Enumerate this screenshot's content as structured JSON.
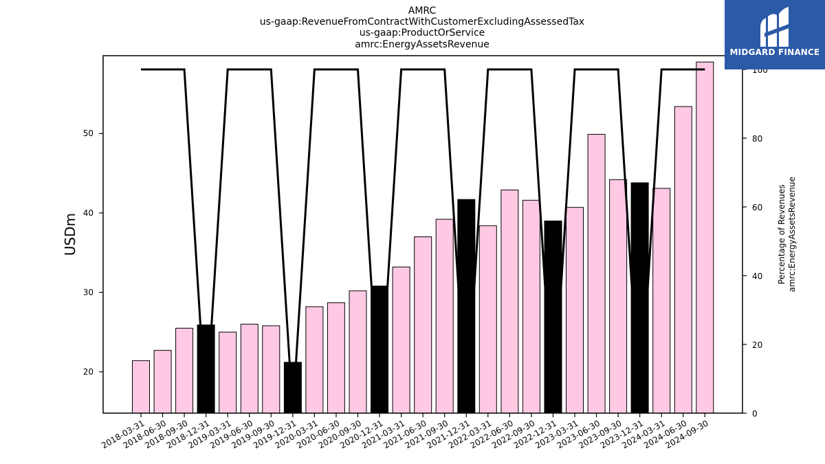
{
  "title": [
    "AMRC",
    "us-gaap:RevenueFromContractWithCustomerExcludingAssessedTax",
    "us-gaap:ProductOrService",
    "amrc:EnergyAssetsRevenue"
  ],
  "logo": {
    "text": "MIDGARD FINANCE",
    "color": "#2b5aa8"
  },
  "chart_data": {
    "type": "bar",
    "categories": [
      "2018-03-31",
      "2018-06-30",
      "2018-09-30",
      "2018-12-31",
      "2019-03-31",
      "2019-06-30",
      "2019-09-30",
      "2019-12-31",
      "2020-03-31",
      "2020-06-30",
      "2020-09-30",
      "2020-12-31",
      "2021-03-31",
      "2021-06-30",
      "2021-09-30",
      "2021-12-31",
      "2022-03-31",
      "2022-06-30",
      "2022-09-30",
      "2022-12-31",
      "2023-03-31",
      "2023-06-30",
      "2023-09-30",
      "2023-12-31",
      "2024-03-31",
      "2024-06-30",
      "2024-09-30"
    ],
    "values": [
      21.4,
      22.7,
      25.5,
      25.9,
      25.0,
      26.0,
      25.8,
      21.2,
      28.2,
      28.7,
      30.2,
      30.8,
      33.2,
      37.0,
      39.2,
      41.7,
      38.4,
      42.9,
      41.6,
      39.0,
      40.7,
      49.9,
      44.2,
      43.8,
      43.1,
      53.4,
      59.0
    ],
    "annual_flags": [
      false,
      false,
      false,
      true,
      false,
      false,
      false,
      true,
      false,
      false,
      false,
      true,
      false,
      false,
      false,
      true,
      false,
      false,
      false,
      true,
      false,
      false,
      false,
      true,
      false,
      false,
      false
    ],
    "bar_color_quarterly": "#ffc9e4",
    "bar_color_annual": "#000000",
    "secondary_line": {
      "values": [
        100,
        100,
        100,
        0,
        100,
        100,
        100,
        0,
        100,
        100,
        100,
        0,
        100,
        100,
        100,
        0,
        100,
        100,
        100,
        0,
        100,
        100,
        100,
        0,
        100,
        100,
        100
      ],
      "color": "#000000"
    },
    "ylabel_left": "USDm",
    "ylabel_right": [
      "Percentage of Revenues",
      "amrc:EnergyAssetsRevenue"
    ],
    "ylim_left": [
      14.8,
      59.8
    ],
    "yticks_left": [
      "20",
      "30",
      "40",
      "50"
    ],
    "ylim_right": [
      0,
      104
    ],
    "yticks_right": [
      "0",
      "20",
      "40",
      "60",
      "80",
      "100"
    ],
    "grid": false
  }
}
